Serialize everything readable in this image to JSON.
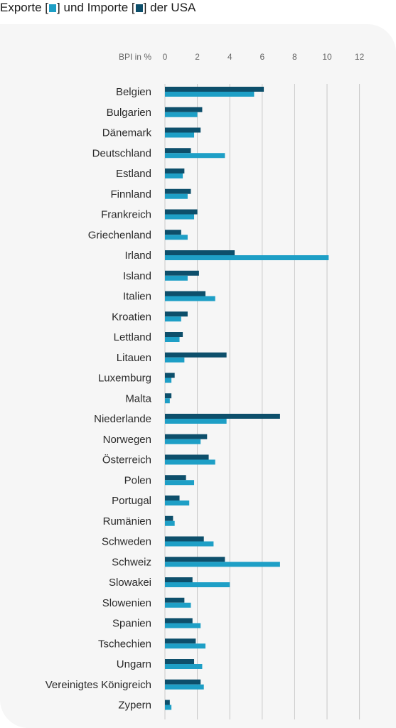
{
  "title": {
    "part1": "Exporte [",
    "part2": "] und Importe [",
    "part3": "] der USA"
  },
  "colors": {
    "exports": "#1e9fc6",
    "imports": "#0d4f6b",
    "grid": "#c8c8c8",
    "text": "#2a2a2a",
    "muted": "#666666"
  },
  "chart_data": {
    "type": "bar",
    "orientation": "horizontal",
    "axis_label": "BPI in %",
    "xlim": [
      0,
      12
    ],
    "ticks": [
      0,
      2,
      4,
      6,
      8,
      10,
      12
    ],
    "grid": true,
    "categories": [
      "Belgien",
      "Bulgarien",
      "Dänemark",
      "Deutschland",
      "Estland",
      "Finnland",
      "Frankreich",
      "Griechenland",
      "Irland",
      "Island",
      "Italien",
      "Kroatien",
      "Lettland",
      "Litauen",
      "Luxemburg",
      "Malta",
      "Niederlande",
      "Norwegen",
      "Österreich",
      "Polen",
      "Portugal",
      "Rumänien",
      "Schweden",
      "Schweiz",
      "Slowakei",
      "Slowenien",
      "Spanien",
      "Tschechien",
      "Ungarn",
      "Vereinigtes Königreich",
      "Zypern"
    ],
    "series": [
      {
        "key": "imports",
        "values": [
          6.1,
          2.3,
          2.2,
          1.6,
          1.2,
          1.6,
          2.0,
          1.0,
          4.3,
          2.1,
          2.5,
          1.4,
          1.1,
          3.8,
          0.6,
          0.4,
          7.1,
          2.6,
          2.7,
          1.3,
          0.9,
          0.5,
          2.4,
          3.7,
          1.7,
          1.2,
          1.7,
          1.9,
          1.8,
          2.2,
          0.3
        ]
      },
      {
        "key": "exports",
        "values": [
          5.5,
          2.0,
          1.8,
          3.7,
          1.1,
          1.4,
          1.8,
          1.4,
          10.1,
          1.4,
          3.1,
          1.0,
          0.9,
          1.2,
          0.4,
          0.3,
          3.8,
          2.2,
          3.1,
          1.8,
          1.5,
          0.6,
          3.0,
          7.1,
          4.0,
          1.6,
          2.2,
          2.5,
          2.3,
          2.4,
          0.4
        ]
      }
    ]
  }
}
